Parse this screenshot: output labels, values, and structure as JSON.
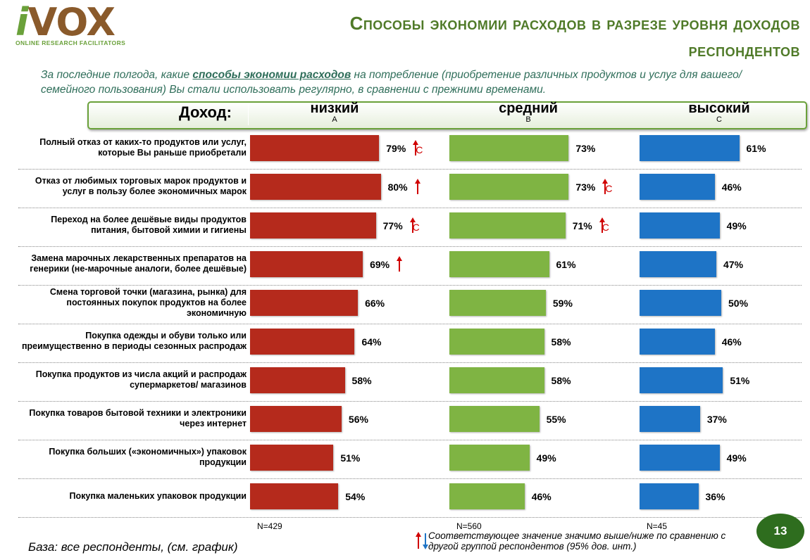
{
  "logo": {
    "name": "iVOX",
    "tagline": "ONLINE RESEARCH FACILITATORS"
  },
  "title_line1": "Способы экономии расходов в разрезе уровня доходов",
  "title_line2": "респондентов",
  "question": {
    "before": "За последние полгода, какие ",
    "highlight": "способы экономии расходов",
    "after": " на потребление (приобретение различных продуктов и услуг для вашего/ семейного пользования) Вы стали использовать регулярно, в сравнении с прежними временами."
  },
  "chart_data": {
    "type": "bar",
    "orientation": "horizontal",
    "income_label": "Доход:",
    "groups": [
      {
        "name": "низкий",
        "letter": "A",
        "n_label": "N=429",
        "color": "#b52a1c"
      },
      {
        "name": "средний",
        "letter": "B",
        "n_label": "N=560",
        "color": "#7fb443"
      },
      {
        "name": "высокий",
        "letter": "C",
        "n_label": "N=45",
        "color": "#1e74c6"
      }
    ],
    "categories": [
      "Полный отказ от каких-то продуктов или услуг, которые Вы раньше приобретали",
      "Отказ от любимых торговых марок продуктов и услуг в пользу более экономичных марок",
      "Переход на более дешёвые виды продуктов питания, бытовой химии и гигиены",
      "Замена марочных лекарственных препаратов на генерики (не-марочные аналоги, более дешёвые)",
      "Смена торговой точки (магазина, рынка) для постоянных покупок продуктов на более экономичную",
      "Покупка одежды и обуви только или преимущественно в периоды сезонных распродаж",
      "Покупка продуктов из числа акций и распродаж супермаркетов/ магазинов",
      "Покупка товаров бытовой техники и электроники через интернет",
      "Покупка больших («экономичных») упаковок продукции",
      "Покупка маленьких упаковок продукции"
    ],
    "series": [
      {
        "name": "низкий",
        "values": [
          79,
          80,
          77,
          69,
          66,
          64,
          58,
          56,
          51,
          54
        ],
        "labels": [
          "79%",
          "80%",
          "77%",
          "69%",
          "66%",
          "64%",
          "58%",
          "56%",
          "51%",
          "54%"
        ],
        "marks": [
          {
            "arrow": "up",
            "letter": "C"
          },
          {
            "arrow": "up",
            "letter": ""
          },
          {
            "arrow": "up",
            "letter": "C"
          },
          {
            "arrow": "up",
            "letter": ""
          },
          null,
          null,
          null,
          null,
          null,
          null
        ]
      },
      {
        "name": "средний",
        "values": [
          73,
          73,
          71,
          61,
          59,
          58,
          58,
          55,
          49,
          46
        ],
        "labels": [
          "73%",
          "73%",
          "71%",
          "61%",
          "59%",
          "58%",
          "58%",
          "55%",
          "49%",
          "46%"
        ],
        "marks": [
          null,
          {
            "arrow": "up",
            "letter": "C"
          },
          {
            "arrow": "up",
            "letter": "C"
          },
          null,
          null,
          null,
          null,
          null,
          null,
          null
        ]
      },
      {
        "name": "высокий",
        "values": [
          61,
          46,
          49,
          47,
          50,
          46,
          51,
          37,
          49,
          36
        ],
        "labels": [
          "61%",
          "46%",
          "49%",
          "47%",
          "50%",
          "46%",
          "51%",
          "37%",
          "49%",
          "36%"
        ],
        "marks": [
          null,
          null,
          null,
          null,
          null,
          null,
          null,
          null,
          null,
          null
        ]
      }
    ],
    "xlim": [
      0,
      100
    ],
    "grid": false,
    "legend": "bottom"
  },
  "footer": {
    "base": "База: все респонденты, (см. график)",
    "legend_note": "Соответствующее значение значимо выше/ниже по сравнению с другой группой респондентов (95% дов. инт.)",
    "page_number": "13"
  },
  "colors": {
    "title": "#4f7a28",
    "question": "#2f6e5a",
    "significance": "#d00000",
    "legend_down": "#1e74c6"
  }
}
